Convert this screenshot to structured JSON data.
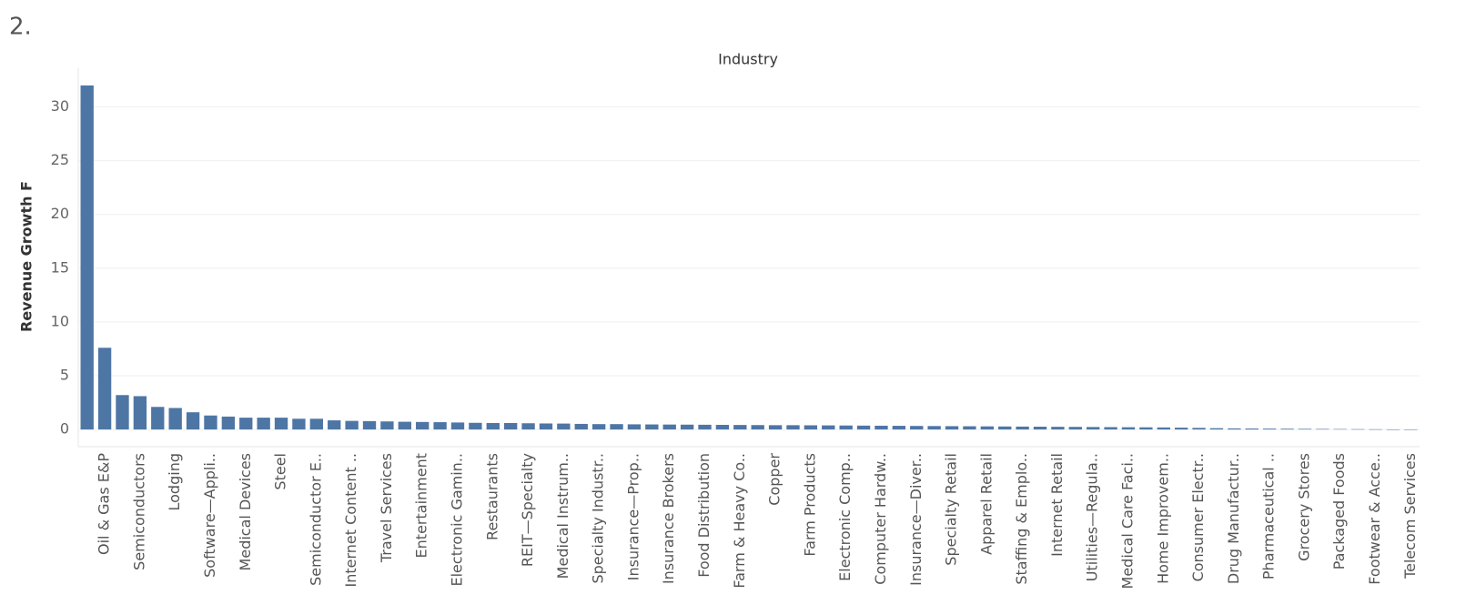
{
  "page_title": "2.",
  "chart_data": {
    "type": "bar",
    "title": "Industry",
    "y_label": "Revenue Growth F",
    "categories": [
      null,
      "Oil & Gas E&P",
      null,
      "Semiconductors",
      null,
      "Lodging",
      null,
      "Software—Appli..",
      null,
      "Medical Devices",
      null,
      "Steel",
      null,
      "Semiconductor E..",
      null,
      "Internet Content ..",
      null,
      "Travel Services",
      null,
      "Entertainment",
      null,
      "Electronic Gamin..",
      null,
      "Restaurants",
      null,
      "REIT—Specialty",
      null,
      "Medical Instrum..",
      null,
      "Specialty Industr..",
      null,
      "Insurance—Prop..",
      null,
      "Insurance Brokers",
      null,
      "Food Distribution",
      null,
      "Farm & Heavy Co..",
      null,
      "Copper",
      null,
      "Farm Products",
      null,
      "Electronic Comp..",
      null,
      "Computer Hardw..",
      null,
      "Insurance—Diver..",
      null,
      "Specialty Retail",
      null,
      "Apparel Retail",
      null,
      "Staffing & Emplo..",
      null,
      "Internet Retail",
      null,
      "Utilities—Regula..",
      null,
      "Medical Care Faci..",
      null,
      "Home Improvem..",
      null,
      "Consumer Electr..",
      null,
      "Drug Manufactur..",
      null,
      "Pharmaceutical ..",
      null,
      "Grocery Stores",
      null,
      "Packaged Foods",
      null,
      "Footwear & Acce..",
      null,
      "Telecom Services"
    ],
    "values": [
      32,
      7.6,
      3.2,
      3.1,
      2.1,
      2.0,
      1.6,
      1.3,
      1.2,
      1.1,
      1.1,
      1.1,
      1.0,
      1.0,
      0.85,
      0.8,
      0.78,
      0.75,
      0.72,
      0.7,
      0.68,
      0.65,
      0.62,
      0.6,
      0.6,
      0.58,
      0.56,
      0.55,
      0.52,
      0.5,
      0.5,
      0.48,
      0.47,
      0.46,
      0.45,
      0.44,
      0.43,
      0.42,
      0.41,
      0.4,
      0.4,
      0.39,
      0.38,
      0.37,
      0.36,
      0.35,
      0.34,
      0.33,
      0.32,
      0.31,
      0.3,
      0.29,
      0.28,
      0.27,
      0.26,
      0.25,
      0.24,
      0.23,
      0.22,
      0.21,
      0.2,
      0.19,
      0.17,
      0.15,
      0.12,
      0.1,
      0.09,
      0.08,
      0.07,
      0.06,
      0.05,
      0.04,
      0.03,
      0.02,
      0.01,
      0.01
    ],
    "color": "#4e76a5",
    "ylim": [
      -1.6,
      33.6
    ],
    "yticks": [
      0,
      5,
      10,
      15,
      20,
      25,
      30
    ],
    "grid": true
  }
}
